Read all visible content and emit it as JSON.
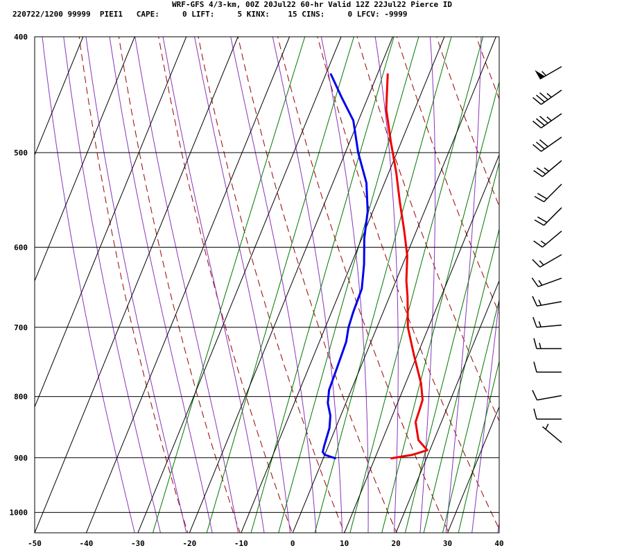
{
  "header": {
    "line1": "WRF-GFS 4/3-km, 00Z 20Jul22 60-hr Valid 12Z 22Jul22 Pierce ID",
    "line2": "220722/1200 99999  PIEI1   CAPE:     0 LIFT:     5 KINX:    15 CINS:     0 LFCV: -9999"
  },
  "colors": {
    "temperature": "#ee0000",
    "dewpoint": "#0000ee",
    "isotherm": "#000000",
    "isobar": "#000000",
    "dry_adiabat": "#990000",
    "moist_adiabat": "#8833bb",
    "mixing_ratio": "#007700",
    "wind_barb": "#000000"
  },
  "chart_data": {
    "type": "line",
    "title": "WRF-GFS 4/3-km, 00Z 20Jul22 60-hr Valid 12Z 22Jul22 Pierce ID",
    "chart_style": "skew-T log-P",
    "xlabel": "",
    "ylabel": "",
    "xlim": [
      -50,
      40
    ],
    "ylim": [
      1040,
      400
    ],
    "y_scale": "log",
    "x_ticks": [
      -50,
      -40,
      -30,
      -20,
      -10,
      0,
      10,
      20,
      30,
      40
    ],
    "x_tick_labels": [
      "-50",
      "-40",
      "-30",
      "-20",
      "-10",
      "0",
      "10",
      "20",
      "30",
      "40"
    ],
    "y_ticks": [
      400,
      500,
      600,
      700,
      800,
      900,
      1000
    ],
    "y_tick_labels": [
      "400",
      "500",
      "600",
      "700",
      "800",
      "900",
      "1000"
    ],
    "grid": true,
    "series": [
      {
        "key": "temperature",
        "points": [
          [
            901,
            13.2
          ],
          [
            895,
            17.0
          ],
          [
            887,
            19.5
          ],
          [
            870,
            17.0
          ],
          [
            840,
            15.0
          ],
          [
            820,
            14.8
          ],
          [
            805,
            14.6
          ],
          [
            780,
            13.0
          ],
          [
            740,
            9.5
          ],
          [
            700,
            6.0
          ],
          [
            660,
            3.5
          ],
          [
            640,
            2.0
          ],
          [
            610,
            0.2
          ],
          [
            580,
            -2.5
          ],
          [
            550,
            -5.5
          ],
          [
            520,
            -8.5
          ],
          [
            490,
            -12.0
          ],
          [
            460,
            -15.5
          ],
          [
            430,
            -18.0
          ]
        ]
      },
      {
        "key": "dewpoint",
        "points": [
          [
            901,
            2.3
          ],
          [
            895,
            0.0
          ],
          [
            890,
            -0.6
          ],
          [
            880,
            -0.8
          ],
          [
            850,
            -1.2
          ],
          [
            830,
            -2.0
          ],
          [
            810,
            -3.5
          ],
          [
            790,
            -4.3
          ],
          [
            760,
            -4.5
          ],
          [
            720,
            -4.8
          ],
          [
            700,
            -5.5
          ],
          [
            680,
            -5.8
          ],
          [
            650,
            -6.0
          ],
          [
            620,
            -7.5
          ],
          [
            590,
            -9.5
          ],
          [
            560,
            -11.0
          ],
          [
            530,
            -13.5
          ],
          [
            500,
            -17.5
          ],
          [
            470,
            -21.0
          ],
          [
            450,
            -25.0
          ],
          [
            430,
            -29.0
          ]
        ]
      }
    ],
    "wind_barbs": [
      {
        "direction": 240,
        "speed": 55
      },
      {
        "direction": 235,
        "speed": 35
      },
      {
        "direction": 235,
        "speed": 35
      },
      {
        "direction": 235,
        "speed": 30
      },
      {
        "direction": 230,
        "speed": 25
      },
      {
        "direction": 225,
        "speed": 20
      },
      {
        "direction": 225,
        "speed": 20
      },
      {
        "direction": 230,
        "speed": 15
      },
      {
        "direction": 240,
        "speed": 15
      },
      {
        "direction": 250,
        "speed": 15
      },
      {
        "direction": 260,
        "speed": 15
      },
      {
        "direction": 265,
        "speed": 15
      },
      {
        "direction": 270,
        "speed": 15
      },
      {
        "direction": 270,
        "speed": 10
      },
      {
        "direction": 260,
        "speed": 10
      },
      {
        "direction": 270,
        "speed": 10
      },
      {
        "direction": 310,
        "speed": 5
      }
    ]
  }
}
